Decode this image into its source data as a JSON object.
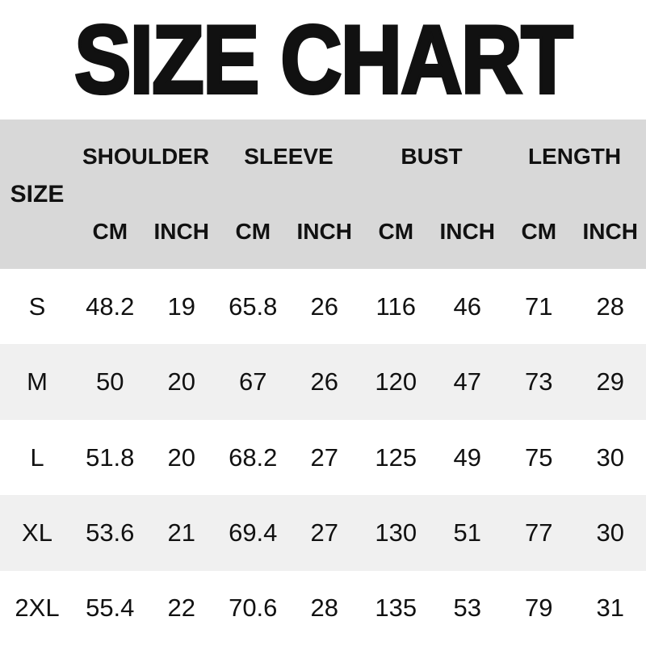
{
  "title": "SIZE CHART",
  "colors": {
    "header_bg": "#d8d8d8",
    "stripe_bg": "#f0f0f0",
    "row_bg": "#ffffff",
    "text": "#111111"
  },
  "table": {
    "size_label": "SIZE",
    "groups": [
      {
        "label": "SHOULDER"
      },
      {
        "label": "SLEEVE"
      },
      {
        "label": "BUST"
      },
      {
        "label": "LENGTH"
      }
    ],
    "units": {
      "cm": "CM",
      "inch": "INCH"
    },
    "rows": [
      {
        "size": "S",
        "values": [
          "48.2",
          "19",
          "65.8",
          "26",
          "116",
          "46",
          "71",
          "28"
        ]
      },
      {
        "size": "M",
        "values": [
          "50",
          "20",
          "67",
          "26",
          "120",
          "47",
          "73",
          "29"
        ]
      },
      {
        "size": "L",
        "values": [
          "51.8",
          "20",
          "68.2",
          "27",
          "125",
          "49",
          "75",
          "30"
        ]
      },
      {
        "size": "XL",
        "values": [
          "53.6",
          "21",
          "69.4",
          "27",
          "130",
          "51",
          "77",
          "30"
        ]
      },
      {
        "size": "2XL",
        "values": [
          "55.4",
          "22",
          "70.6",
          "28",
          "135",
          "53",
          "79",
          "31"
        ]
      }
    ]
  },
  "chart_data": {
    "type": "table",
    "title": "SIZE CHART",
    "columns": [
      "SIZE",
      "SHOULDER CM",
      "SHOULDER INCH",
      "SLEEVE CM",
      "SLEEVE INCH",
      "BUST CM",
      "BUST INCH",
      "LENGTH CM",
      "LENGTH INCH"
    ],
    "rows": [
      [
        "S",
        48.2,
        19,
        65.8,
        26,
        116,
        46,
        71,
        28
      ],
      [
        "M",
        50,
        20,
        67,
        26,
        120,
        47,
        73,
        29
      ],
      [
        "L",
        51.8,
        20,
        68.2,
        27,
        125,
        49,
        75,
        30
      ],
      [
        "XL",
        53.6,
        21,
        69.4,
        27,
        130,
        51,
        77,
        30
      ],
      [
        "2XL",
        55.4,
        22,
        70.6,
        28,
        135,
        53,
        79,
        31
      ]
    ],
    "layout": {
      "header_background": "#d8d8d8",
      "stripe_background": "#f0f0f0",
      "striped_rows": [
        "M",
        "XL"
      ]
    }
  }
}
